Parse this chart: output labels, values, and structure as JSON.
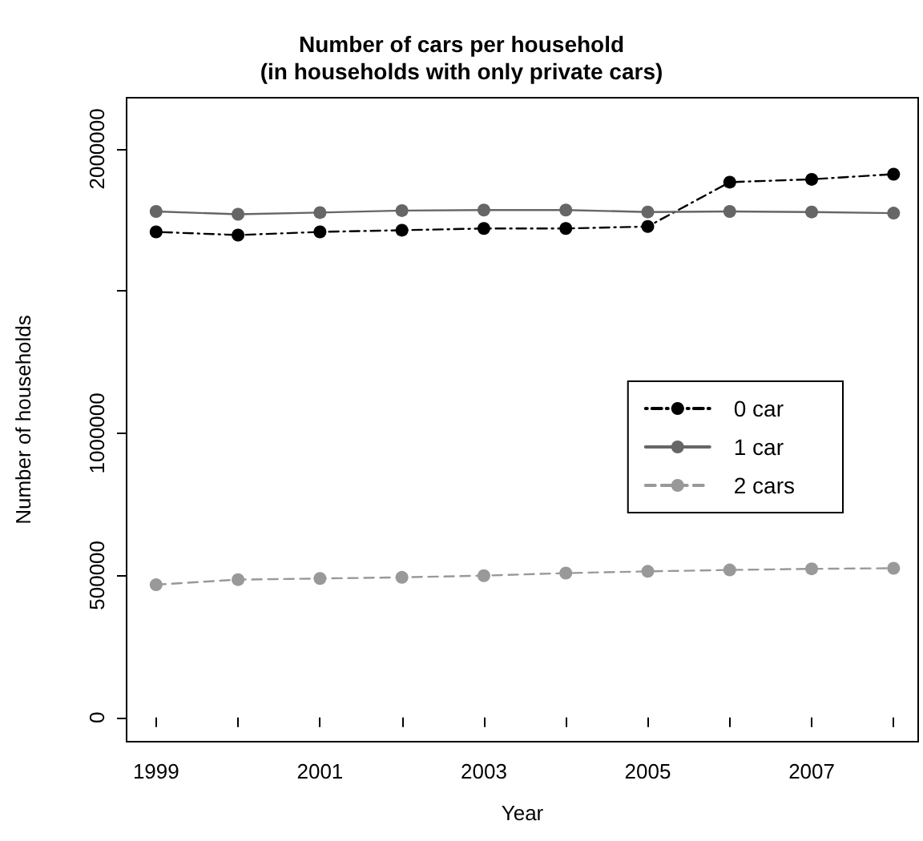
{
  "chart_data": {
    "type": "line",
    "title": "Number of cars per household\n(in households with only private cars)",
    "xlabel": "Year",
    "ylabel": "Number of households",
    "x": [
      1999,
      2000,
      2001,
      2002,
      2003,
      2004,
      2005,
      2006,
      2007,
      2008
    ],
    "series": [
      {
        "name": "0 car",
        "color": "#000000",
        "line_style": "dashdot",
        "values": [
          1708000,
          1697000,
          1708000,
          1714000,
          1720000,
          1720000,
          1727000,
          1883000,
          1893000,
          1911000
        ]
      },
      {
        "name": "1 car",
        "color": "#666666",
        "line_style": "solid",
        "values": [
          1780000,
          1770000,
          1776000,
          1783000,
          1785000,
          1785000,
          1778000,
          1780000,
          1778000,
          1774000
        ]
      },
      {
        "name": "2 cars",
        "color": "#999999",
        "line_style": "dashed",
        "values": [
          467000,
          485000,
          489000,
          493000,
          499000,
          508000,
          514000,
          519000,
          523000,
          525000
        ]
      }
    ],
    "xlim": [
      1998.64,
      2008.3
    ],
    "xticks": [
      1999,
      {
        "value": 2000,
        "label": null
      },
      2001,
      {
        "value": 2002,
        "label": null
      },
      2003,
      {
        "value": 2004,
        "label": null
      },
      2005,
      {
        "value": 2006,
        "label": null
      },
      2007,
      {
        "value": 2008,
        "label": null
      }
    ],
    "ylim": [
      -85000,
      2180000
    ],
    "yticks": [
      0,
      500000,
      1000000,
      {
        "value": 1500000,
        "label": null
      },
      2000000
    ],
    "marker": "circle",
    "grid": false,
    "legend": "right"
  }
}
